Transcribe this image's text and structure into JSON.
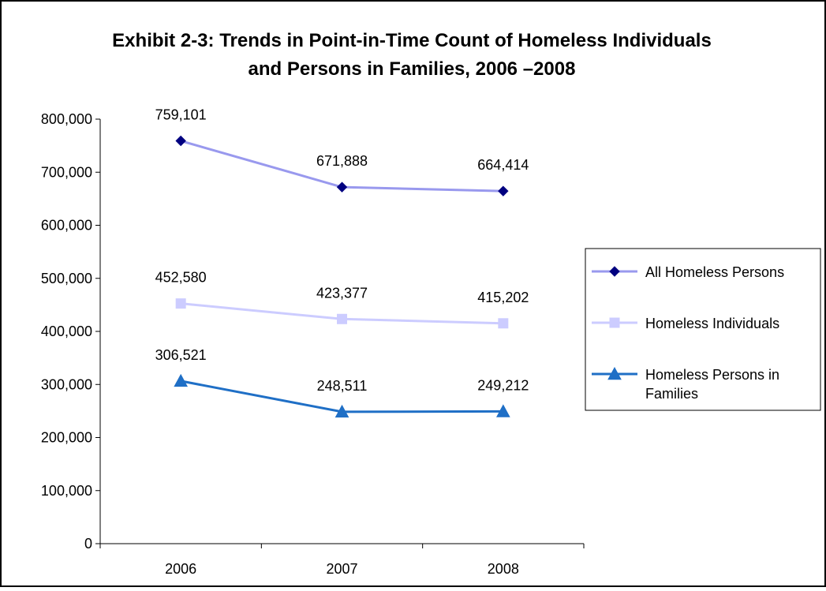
{
  "chart_data": {
    "type": "line",
    "title": "Exhibit 2-3: Trends in Point-in-Time Count of Homeless Individuals and Persons in Families, 2006 –2008",
    "title_lines": [
      "Exhibit 2-3: Trends in Point-in-Time Count of Homeless Individuals",
      "and Persons in Families, 2006 –2008"
    ],
    "xlabel": "",
    "ylabel": "",
    "categories": [
      "2006",
      "2007",
      "2008"
    ],
    "ylim": [
      0,
      800000
    ],
    "yticks": [
      0,
      100000,
      200000,
      300000,
      400000,
      500000,
      600000,
      700000,
      800000
    ],
    "ytick_labels": [
      "0",
      "100,000",
      "200,000",
      "300,000",
      "400,000",
      "500,000",
      "600,000",
      "700,000",
      "800,000"
    ],
    "grid": false,
    "legend_position": "right",
    "series": [
      {
        "name": "All Homeless Persons",
        "legend_lines": [
          "All Homeless Persons"
        ],
        "values": [
          759101,
          671888,
          664414
        ],
        "labels": [
          "759,101",
          "671,888",
          "664,414"
        ],
        "color": "#9999ee",
        "marker_color": "#000080",
        "marker": "diamond"
      },
      {
        "name": "Homeless Individuals",
        "legend_lines": [
          "Homeless Individuals"
        ],
        "values": [
          452580,
          423377,
          415202
        ],
        "labels": [
          "452,580",
          "423,377",
          "415,202"
        ],
        "color": "#ccccff",
        "marker_color": "#ccccff",
        "marker": "square"
      },
      {
        "name": "Homeless Persons in Families",
        "legend_lines": [
          "Homeless Persons in",
          "Families"
        ],
        "values": [
          306521,
          248511,
          249212
        ],
        "labels": [
          "306,521",
          "248,511",
          "249,212"
        ],
        "color": "#1f6fc6",
        "marker_color": "#1f6fc6",
        "marker": "triangle"
      }
    ]
  }
}
